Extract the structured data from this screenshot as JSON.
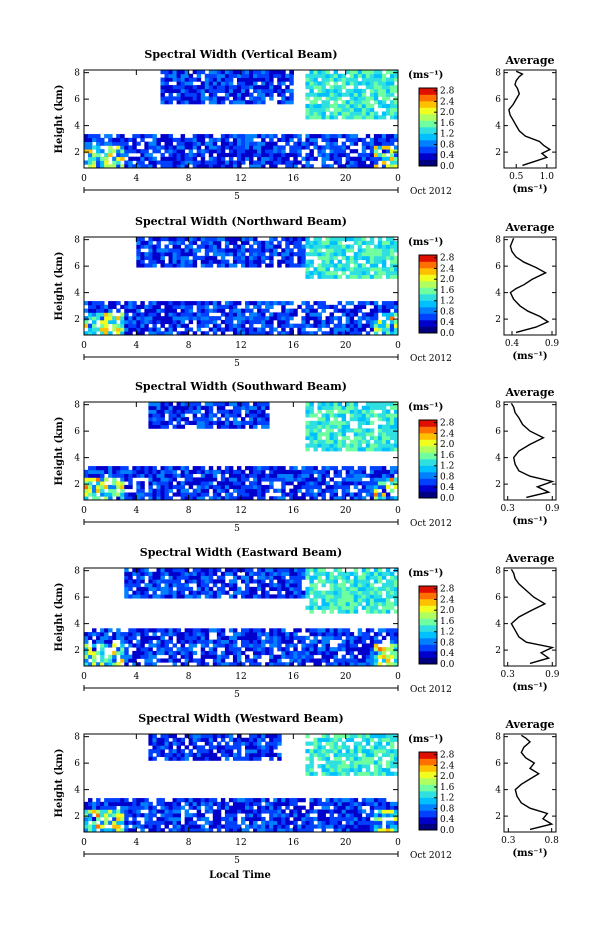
{
  "figure": {
    "xlabel": "Local Time",
    "ylabel": "Height (km)",
    "unit_label": "(ms⁻¹)",
    "date_label": "Oct 2012",
    "day_label": "5",
    "avg_title": "Average",
    "avg_xlabel": "(ms⁻¹)"
  },
  "chart_data": [
    {
      "type": "heatmap",
      "title": "Spectral Width (Vertical Beam)",
      "x_ticks": [
        "0",
        "4",
        "8",
        "12",
        "16",
        "20",
        "0"
      ],
      "xlim": [
        0,
        24
      ],
      "y_ticks": [
        "2",
        "4",
        "6",
        "8"
      ],
      "ylim": [
        0.8,
        8.2
      ],
      "colorbar": {
        "ticks": [
          "0.0",
          "0.4",
          "0.8",
          "1.2",
          "1.6",
          "2.0",
          "2.4",
          "2.8"
        ],
        "range": [
          0,
          2.9
        ],
        "colors": [
          "#000080",
          "#0000cc",
          "#0040ff",
          "#0080ff",
          "#00c0ff",
          "#30e0e0",
          "#70ffa0",
          "#b0ff60",
          "#f0ff20",
          "#ffc000",
          "#ff7000",
          "#e01000"
        ]
      },
      "bands": [
        {
          "name": "lower",
          "y": [
            0.9,
            3.4
          ],
          "level": 0.5
        },
        {
          "name": "upper",
          "y": [
            5.5,
            8.1
          ],
          "level": 0.5,
          "x": [
            6,
            16
          ]
        },
        {
          "name": "upper-cyan",
          "y": [
            4.5,
            8.1
          ],
          "level": 1.3,
          "x": [
            17,
            24
          ]
        }
      ],
      "average": {
        "title": "Average",
        "x_ticks": [
          "0.5",
          "1.0"
        ],
        "xlim": [
          0.3,
          1.15
        ],
        "y_ticks": [
          "2",
          "4",
          "6",
          "8"
        ],
        "ylim": [
          0.8,
          8.2
        ],
        "x": [
          0.6,
          0.8,
          1.0,
          0.92,
          1.05,
          0.95,
          0.88,
          0.65,
          0.55,
          0.5,
          0.45,
          0.4,
          0.38,
          0.45,
          0.5,
          0.55,
          0.52,
          0.48,
          0.5,
          0.55,
          0.6,
          0.55,
          0.5
        ],
        "y": [
          1.0,
          1.3,
          1.6,
          1.9,
          2.2,
          2.5,
          2.8,
          3.2,
          3.6,
          4.0,
          4.4,
          4.8,
          5.2,
          5.6,
          6.0,
          6.4,
          6.8,
          7.1,
          7.4,
          7.7,
          7.9,
          8.0,
          8.1
        ]
      }
    },
    {
      "type": "heatmap",
      "title": "Spectral Width (Northward Beam)",
      "x_ticks": [
        "0",
        "4",
        "8",
        "12",
        "16",
        "20",
        "0"
      ],
      "xlim": [
        0,
        24
      ],
      "y_ticks": [
        "2",
        "4",
        "6",
        "8"
      ],
      "ylim": [
        0.8,
        8.2
      ],
      "colorbar": {
        "ticks": [
          "0.0",
          "0.4",
          "0.8",
          "1.2",
          "1.6",
          "2.0",
          "2.4",
          "2.8"
        ],
        "range": [
          0,
          2.9
        ],
        "colors": [
          "#000080",
          "#0000cc",
          "#0040ff",
          "#0080ff",
          "#00c0ff",
          "#30e0e0",
          "#70ffa0",
          "#b0ff60",
          "#f0ff20",
          "#ffc000",
          "#ff7000",
          "#e01000"
        ]
      },
      "bands": [
        {
          "name": "lower",
          "y": [
            0.9,
            3.5
          ],
          "level": 0.5
        },
        {
          "name": "upper",
          "y": [
            6.0,
            8.1
          ],
          "level": 0.5,
          "x": [
            4,
            17
          ]
        },
        {
          "name": "upper-cyan",
          "y": [
            5.0,
            8.1
          ],
          "level": 1.3,
          "x": [
            17,
            24
          ]
        }
      ],
      "average": {
        "title": "Average",
        "x_ticks": [
          "0.4",
          "0.9"
        ],
        "xlim": [
          0.3,
          0.95
        ],
        "y_ticks": [
          "2",
          "4",
          "6",
          "8"
        ],
        "ylim": [
          0.8,
          8.2
        ],
        "x": [
          0.45,
          0.7,
          0.85,
          0.75,
          0.6,
          0.5,
          0.42,
          0.38,
          0.45,
          0.55,
          0.65,
          0.82,
          0.7,
          0.55,
          0.45,
          0.4,
          0.38,
          0.4,
          0.42
        ],
        "y": [
          1.0,
          1.4,
          1.8,
          2.2,
          2.6,
          3.0,
          3.5,
          4.0,
          4.3,
          4.6,
          5.0,
          5.5,
          5.9,
          6.3,
          6.7,
          7.1,
          7.5,
          7.8,
          8.1
        ]
      }
    },
    {
      "type": "heatmap",
      "title": "Spectral Width (Southward Beam)",
      "x_ticks": [
        "0",
        "4",
        "8",
        "12",
        "16",
        "20",
        "0"
      ],
      "xlim": [
        0,
        24
      ],
      "y_ticks": [
        "2",
        "4",
        "6",
        "8"
      ],
      "ylim": [
        0.8,
        8.2
      ],
      "colorbar": {
        "ticks": [
          "0.0",
          "0.4",
          "0.8",
          "1.2",
          "1.6",
          "2.0",
          "2.4",
          "2.8"
        ],
        "range": [
          0,
          2.9
        ],
        "colors": [
          "#000080",
          "#0000cc",
          "#0040ff",
          "#0080ff",
          "#00c0ff",
          "#30e0e0",
          "#70ffa0",
          "#b0ff60",
          "#f0ff20",
          "#ffc000",
          "#ff7000",
          "#e01000"
        ]
      },
      "bands": [
        {
          "name": "lower",
          "y": [
            0.9,
            3.4
          ],
          "level": 0.5
        },
        {
          "name": "upper",
          "y": [
            6.3,
            8.1
          ],
          "level": 0.5,
          "x": [
            5,
            14
          ]
        },
        {
          "name": "upper-cyan",
          "y": [
            4.5,
            8.1
          ],
          "level": 1.3,
          "x": [
            17,
            24
          ]
        }
      ],
      "average": {
        "title": "Average",
        "x_ticks": [
          "0.3",
          "0.9"
        ],
        "xlim": [
          0.25,
          0.95
        ],
        "y_ticks": [
          "2",
          "4",
          "6",
          "8"
        ],
        "ylim": [
          0.8,
          8.2
        ],
        "x": [
          0.55,
          0.85,
          0.7,
          0.9,
          0.6,
          0.45,
          0.4,
          0.38,
          0.45,
          0.6,
          0.78,
          0.6,
          0.5,
          0.45,
          0.4,
          0.38,
          0.35
        ],
        "y": [
          1.0,
          1.4,
          1.8,
          2.2,
          2.6,
          3.0,
          3.5,
          4.0,
          4.5,
          5.0,
          5.5,
          6.0,
          6.5,
          7.0,
          7.4,
          7.8,
          8.1
        ]
      }
    },
    {
      "type": "heatmap",
      "title": "Spectral Width (Eastward Beam)",
      "x_ticks": [
        "0",
        "4",
        "8",
        "12",
        "16",
        "20",
        "0"
      ],
      "xlim": [
        0,
        24
      ],
      "y_ticks": [
        "2",
        "4",
        "6",
        "8"
      ],
      "ylim": [
        0.8,
        8.2
      ],
      "colorbar": {
        "ticks": [
          "0.0",
          "0.4",
          "0.8",
          "1.2",
          "1.6",
          "2.0",
          "2.4",
          "2.8"
        ],
        "range": [
          0,
          2.9
        ],
        "colors": [
          "#000080",
          "#0000cc",
          "#0040ff",
          "#0080ff",
          "#00c0ff",
          "#30e0e0",
          "#70ffa0",
          "#b0ff60",
          "#f0ff20",
          "#ffc000",
          "#ff7000",
          "#e01000"
        ]
      },
      "bands": [
        {
          "name": "lower",
          "y": [
            0.9,
            3.6
          ],
          "level": 0.5
        },
        {
          "name": "upper",
          "y": [
            6.0,
            8.1
          ],
          "level": 0.5,
          "x": [
            3,
            17
          ]
        },
        {
          "name": "upper-cyan",
          "y": [
            4.8,
            8.1
          ],
          "level": 1.3,
          "x": [
            17,
            24
          ]
        }
      ],
      "average": {
        "title": "Average",
        "x_ticks": [
          "0.3",
          "0.9"
        ],
        "xlim": [
          0.25,
          0.95
        ],
        "y_ticks": [
          "2",
          "4",
          "6",
          "8"
        ],
        "ylim": [
          0.8,
          8.2
        ],
        "x": [
          0.6,
          0.85,
          0.75,
          0.9,
          0.55,
          0.45,
          0.4,
          0.35,
          0.45,
          0.62,
          0.8,
          0.65,
          0.55,
          0.45,
          0.4,
          0.38,
          0.35
        ],
        "y": [
          1.0,
          1.4,
          1.8,
          2.2,
          2.6,
          3.0,
          3.5,
          4.0,
          4.5,
          5.0,
          5.5,
          6.0,
          6.5,
          7.0,
          7.4,
          7.8,
          8.1
        ]
      }
    },
    {
      "type": "heatmap",
      "title": "Spectral Width (Westward Beam)",
      "x_ticks": [
        "0",
        "4",
        "8",
        "12",
        "16",
        "20",
        "0"
      ],
      "xlim": [
        0,
        24
      ],
      "y_ticks": [
        "2",
        "4",
        "6",
        "8"
      ],
      "ylim": [
        0.8,
        8.2
      ],
      "colorbar": {
        "ticks": [
          "0.0",
          "0.4",
          "0.8",
          "1.2",
          "1.6",
          "2.0",
          "2.4",
          "2.8"
        ],
        "range": [
          0,
          2.9
        ],
        "colors": [
          "#000080",
          "#0000cc",
          "#0040ff",
          "#0080ff",
          "#00c0ff",
          "#30e0e0",
          "#70ffa0",
          "#b0ff60",
          "#f0ff20",
          "#ffc000",
          "#ff7000",
          "#e01000"
        ]
      },
      "bands": [
        {
          "name": "lower",
          "y": [
            0.9,
            3.5
          ],
          "level": 0.5
        },
        {
          "name": "upper",
          "y": [
            6.3,
            8.1
          ],
          "level": 0.5,
          "x": [
            5,
            15
          ]
        },
        {
          "name": "upper-cyan",
          "y": [
            5.0,
            8.1
          ],
          "level": 1.3,
          "x": [
            17,
            24
          ]
        }
      ],
      "average": {
        "title": "Average",
        "x_ticks": [
          "0.3",
          "0.8"
        ],
        "xlim": [
          0.25,
          0.85
        ],
        "y_ticks": [
          "2",
          "4",
          "6",
          "8"
        ],
        "ylim": [
          0.8,
          8.2
        ],
        "x": [
          0.55,
          0.8,
          0.7,
          0.75,
          0.55,
          0.45,
          0.4,
          0.38,
          0.45,
          0.55,
          0.65,
          0.55,
          0.6,
          0.5,
          0.45,
          0.48,
          0.55,
          0.5,
          0.45
        ],
        "y": [
          1.0,
          1.4,
          1.8,
          2.2,
          2.6,
          3.0,
          3.5,
          4.0,
          4.4,
          4.8,
          5.2,
          5.6,
          6.0,
          6.4,
          6.8,
          7.2,
          7.6,
          7.9,
          8.1
        ]
      }
    }
  ]
}
